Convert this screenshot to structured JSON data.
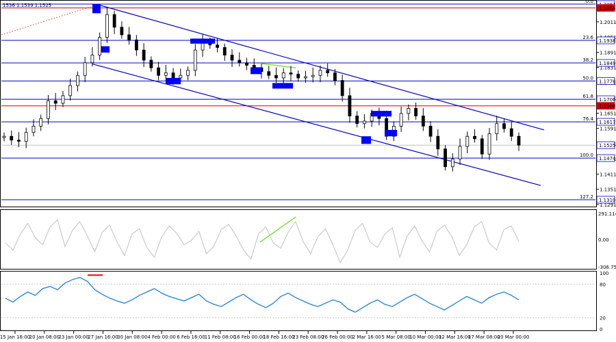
{
  "symbol_info": "1536 1.1539 1.1525",
  "colors": {
    "frame": "#000000",
    "level_line": "#0000cc",
    "red_line": "#cc0000",
    "channel": "#0000cc",
    "candle": "#000000",
    "marker_fill": "#0000ff",
    "osc_line": "#c0c0c0",
    "divergence": "#7fe03a",
    "rsi_line": "#1e7fe0",
    "rsi_mark": "#ff0000",
    "grid": "#c8c8c8",
    "price_tag_bg": "#ffffff"
  },
  "chart_data": [
    {
      "type": "candlestick",
      "ylim": [
        1.1291,
        1.2081
      ],
      "x_labels": [
        "15 Jan 16:00",
        "20 Jan 08:00",
        "23 Jan 00:00",
        "27 Jan 16:00",
        "30 Jan 08:00",
        "4 Feb 00:00",
        "6 Feb 16:00",
        "11 Feb 08:00",
        "16 Feb 00:00",
        "18 Feb 16:00",
        "23 Feb 08:00",
        "26 Feb 00:00",
        "2 Mar 16:00",
        "5 Mar 08:00",
        "10 Mar 00:00",
        "12 Mar 16:00",
        "17 Mar 08:00",
        "20 Mar 00:00"
      ],
      "y_ticks": [
        1.2011,
        1.1951,
        1.1891,
        1.1831,
        1.1771,
        1.1711,
        1.1651,
        1.1591,
        1.1531,
        1.1471,
        1.1411,
        1.1351,
        1.1291
      ],
      "fib_levels": [
        {
          "label": "0.0",
          "price": 1.2081
        },
        {
          "label": "23.6",
          "price": 1.1938
        },
        {
          "label": "38.2",
          "price": 1.1849
        },
        {
          "label": "50.0",
          "price": 1.1778
        },
        {
          "label": "61.8",
          "price": 1.1706
        },
        {
          "label": "76.4",
          "price": 1.1617
        },
        {
          "label": "100.0",
          "price": 1.1474
        },
        {
          "label": "127.2",
          "price": 1.131
        }
      ],
      "red_levels": [
        1.2066,
        1.168
      ],
      "current_price": 1.1525,
      "price_tags": [
        "1.2081",
        "1.2066",
        "1.1938",
        "1.1849",
        "1.1778",
        "1.1706",
        "1.1680",
        "1.1617",
        "1.1525",
        "1.1474",
        "1.1310"
      ],
      "close_series": [
        1.156,
        1.1545,
        1.154,
        1.1575,
        1.16,
        1.163,
        1.17,
        1.169,
        1.172,
        1.176,
        1.18,
        1.185,
        1.188,
        1.195,
        1.204,
        1.199,
        1.196,
        1.194,
        1.19,
        1.186,
        1.183,
        1.18,
        1.181,
        1.179,
        1.18,
        1.182,
        1.19,
        1.193,
        1.192,
        1.191,
        1.188,
        1.186,
        1.185,
        1.184,
        1.183,
        1.1815,
        1.18,
        1.179,
        1.181,
        1.1805,
        1.179,
        1.1795,
        1.18,
        1.182,
        1.181,
        1.178,
        1.172,
        1.164,
        1.161,
        1.162,
        1.165,
        1.163,
        1.156,
        1.16,
        1.165,
        1.167,
        1.164,
        1.16,
        1.156,
        1.151,
        1.144,
        1.147,
        1.152,
        1.156,
        1.155,
        1.149,
        1.157,
        1.161,
        1.159,
        1.156,
        1.1525
      ]
    },
    {
      "type": "line",
      "name": "oscillator-1",
      "y_ticks": [
        "291.1149",
        "0.00",
        "-306.75"
      ],
      "ylim": [
        -306.75,
        291.1149
      ],
      "values": [
        -40,
        -120,
        60,
        180,
        20,
        -60,
        140,
        220,
        -80,
        100,
        200,
        40,
        -140,
        80,
        160,
        -30,
        -180,
        60,
        120,
        -90,
        -200,
        30,
        150,
        70,
        -60,
        -10,
        90,
        -160,
        -80,
        110,
        170,
        40,
        -120,
        -220,
        60,
        140,
        -40,
        -100,
        80,
        200,
        -20,
        -160,
        30,
        120,
        -60,
        -260,
        -120,
        100,
        180,
        -30,
        -90,
        60,
        130,
        -200,
        40,
        150,
        -20,
        -140,
        90,
        160,
        30,
        -180,
        -60,
        140,
        200,
        -40,
        -120,
        110,
        150,
        -20
      ]
    },
    {
      "type": "line",
      "name": "rsi",
      "y_ticks": [
        "100",
        "80",
        "20",
        "0"
      ],
      "ylim": [
        0,
        100
      ],
      "values": [
        55,
        48,
        58,
        66,
        60,
        72,
        76,
        70,
        82,
        88,
        92,
        85,
        70,
        62,
        55,
        50,
        46,
        52,
        60,
        66,
        72,
        64,
        58,
        54,
        50,
        56,
        62,
        50,
        44,
        40,
        48,
        56,
        62,
        52,
        44,
        38,
        46,
        58,
        64,
        56,
        50,
        44,
        40,
        46,
        52,
        48,
        36,
        30,
        38,
        46,
        52,
        44,
        40,
        48,
        56,
        62,
        54,
        46,
        40,
        34,
        42,
        50,
        58,
        52,
        46,
        56,
        62,
        66,
        60,
        52
      ]
    }
  ]
}
